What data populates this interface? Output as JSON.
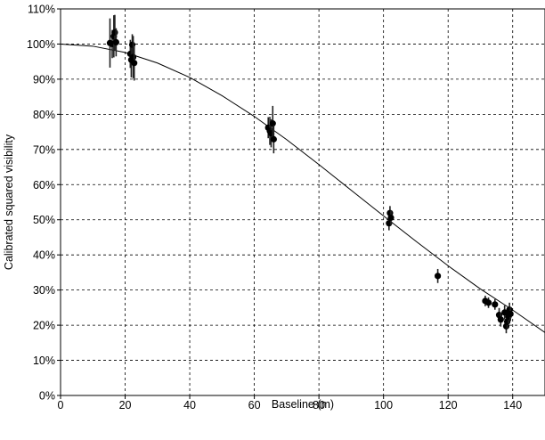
{
  "chart_data": {
    "type": "scatter",
    "xlabel": "Baseline (m)",
    "ylabel": "Calibrated squared visibility",
    "xlim": [
      0,
      150
    ],
    "ylim": [
      0,
      110
    ],
    "x_ticks": [
      0,
      20,
      40,
      60,
      80,
      100,
      120,
      140
    ],
    "x_tick_labels": [
      "0",
      "20",
      "40",
      "60",
      "80",
      "100",
      "120",
      "140"
    ],
    "y_ticks": [
      0,
      10,
      20,
      30,
      40,
      50,
      60,
      70,
      80,
      90,
      100,
      110
    ],
    "y_tick_labels": [
      "0%",
      "10%",
      "20%",
      "30%",
      "40%",
      "50%",
      "60%",
      "70%",
      "80%",
      "90%",
      "100%",
      "110%"
    ],
    "grid": true,
    "series": [
      {
        "type": "scatter_with_error",
        "points": [
          {
            "x": 15.3,
            "y": 100.3,
            "err": 7
          },
          {
            "x": 16.0,
            "y": 100.0,
            "err": 4
          },
          {
            "x": 16.5,
            "y": 102.2,
            "err": 6
          },
          {
            "x": 16.8,
            "y": 103.3,
            "err": 5
          },
          {
            "x": 17.2,
            "y": 100.5,
            "err": 4
          },
          {
            "x": 21.6,
            "y": 97.2,
            "err": 4
          },
          {
            "x": 21.9,
            "y": 95.5,
            "err": 5
          },
          {
            "x": 22.2,
            "y": 99.8,
            "err": 3
          },
          {
            "x": 22.5,
            "y": 96.3,
            "err": 6
          },
          {
            "x": 22.8,
            "y": 94.6,
            "err": 5
          },
          {
            "x": 64.3,
            "y": 76.2,
            "err": 3
          },
          {
            "x": 64.8,
            "y": 75.3,
            "err": 4
          },
          {
            "x": 65.2,
            "y": 74.6,
            "err": 4
          },
          {
            "x": 65.7,
            "y": 77.4,
            "err": 5
          },
          {
            "x": 66.0,
            "y": 72.9,
            "err": 4
          },
          {
            "x": 101.7,
            "y": 49.0,
            "err": 2
          },
          {
            "x": 102.0,
            "y": 51.9,
            "err": 2
          },
          {
            "x": 102.3,
            "y": 50.6,
            "err": 2
          },
          {
            "x": 116.8,
            "y": 34.0,
            "err": 2
          },
          {
            "x": 131.5,
            "y": 26.9,
            "err": 1.5
          },
          {
            "x": 132.5,
            "y": 26.4,
            "err": 1.5
          },
          {
            "x": 134.5,
            "y": 25.9,
            "err": 1.5
          },
          {
            "x": 135.8,
            "y": 22.9,
            "err": 2
          },
          {
            "x": 136.3,
            "y": 21.6,
            "err": 2
          },
          {
            "x": 137.5,
            "y": 23.6,
            "err": 2
          },
          {
            "x": 138.0,
            "y": 19.7,
            "err": 2
          },
          {
            "x": 138.3,
            "y": 21.0,
            "err": 2
          },
          {
            "x": 138.7,
            "y": 22.4,
            "err": 2
          },
          {
            "x": 139.0,
            "y": 24.4,
            "err": 2
          },
          {
            "x": 139.3,
            "y": 23.2,
            "err": 2
          }
        ]
      },
      {
        "type": "line",
        "model": "uniform_disk_fit",
        "points": [
          {
            "x": 0,
            "y": 100.0
          },
          {
            "x": 10,
            "y": 99.4
          },
          {
            "x": 20,
            "y": 97.6
          },
          {
            "x": 30,
            "y": 94.6
          },
          {
            "x": 40,
            "y": 90.5
          },
          {
            "x": 50,
            "y": 85.3
          },
          {
            "x": 60,
            "y": 79.4
          },
          {
            "x": 70,
            "y": 72.8
          },
          {
            "x": 80,
            "y": 65.7
          },
          {
            "x": 90,
            "y": 58.4
          },
          {
            "x": 100,
            "y": 51.1
          },
          {
            "x": 110,
            "y": 43.9
          },
          {
            "x": 120,
            "y": 36.9
          },
          {
            "x": 130,
            "y": 30.3
          },
          {
            "x": 140,
            "y": 24.3
          },
          {
            "x": 150,
            "y": 17.9
          }
        ]
      }
    ]
  }
}
